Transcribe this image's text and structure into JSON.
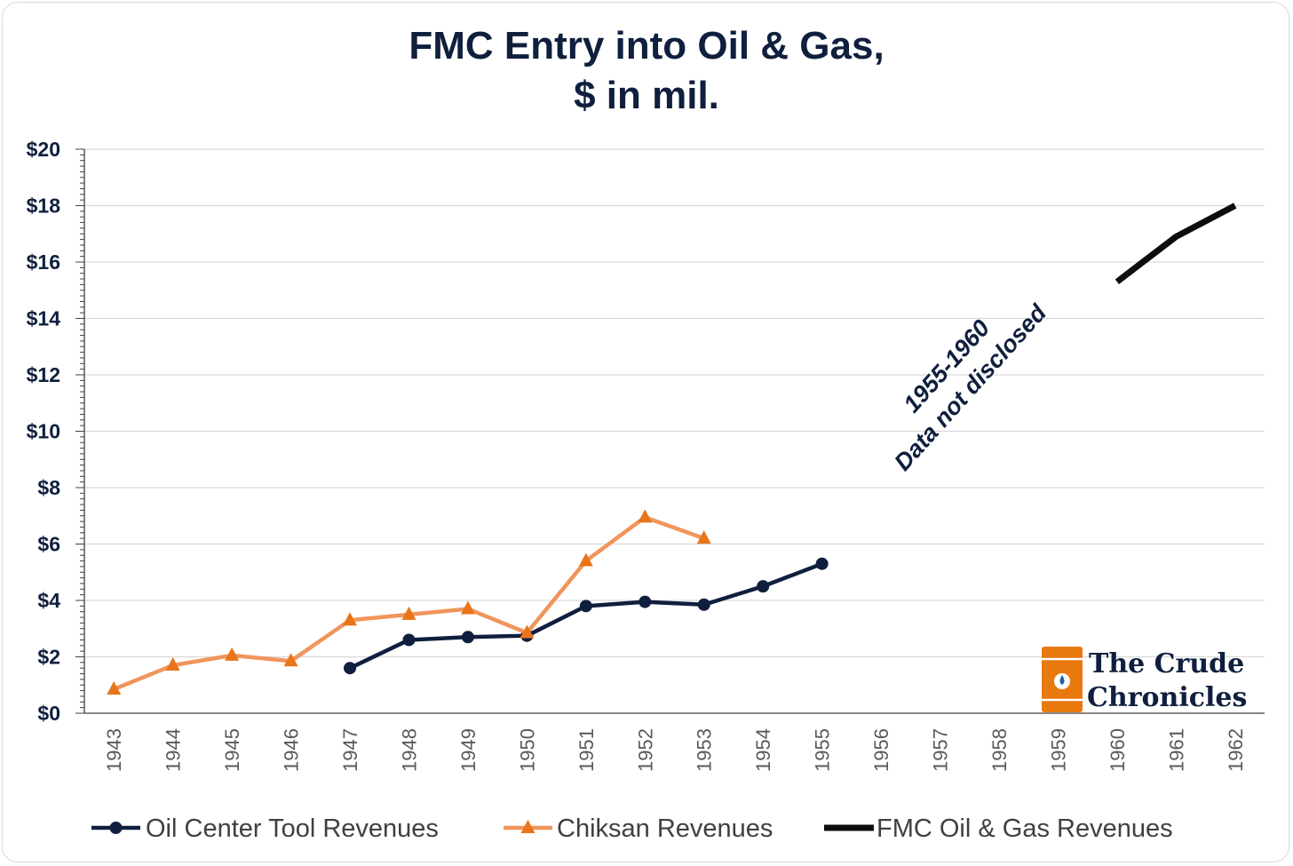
{
  "title_line1": "FMC Entry into Oil & Gas,",
  "title_line2": "$ in mil.",
  "annotation_line1": "1955-1960",
  "annotation_line2": "Data not disclosed",
  "logo": {
    "line1": "The Crude",
    "line2": "Chronicles",
    "icon": "oil-barrel-icon"
  },
  "colors": {
    "oil_center": "#0f1f3d",
    "chiksan": "#f0955b",
    "chiksan_marker": "#e8751a",
    "fmc": "#0d0d0d",
    "logo_barrel": "#e8790f"
  },
  "chart_data": {
    "type": "line",
    "x": [
      "1943",
      "1944",
      "1945",
      "1946",
      "1947",
      "1948",
      "1949",
      "1950",
      "1951",
      "1952",
      "1953",
      "1954",
      "1955",
      "1956",
      "1957",
      "1958",
      "1959",
      "1960",
      "1961",
      "1962"
    ],
    "yticks": [
      "$0",
      "$2",
      "$4",
      "$6",
      "$8",
      "$10",
      "$12",
      "$14",
      "$16",
      "$18",
      "$20"
    ],
    "ylim": [
      0,
      20
    ],
    "grid": true,
    "legend_position": "bottom",
    "series": [
      {
        "name": "Oil Center Tool Revenues",
        "marker": "circle",
        "values": [
          null,
          null,
          null,
          null,
          1.6,
          2.6,
          2.7,
          2.75,
          3.8,
          3.95,
          3.85,
          4.5,
          5.3,
          null,
          null,
          null,
          null,
          null,
          null,
          null
        ]
      },
      {
        "name": "Chiksan Revenues",
        "marker": "triangle",
        "values": [
          0.85,
          1.7,
          2.05,
          1.85,
          3.3,
          3.5,
          3.7,
          2.85,
          5.4,
          6.95,
          6.2,
          null,
          null,
          null,
          null,
          null,
          null,
          null,
          null,
          null
        ]
      },
      {
        "name": "FMC Oil & Gas Revenues",
        "marker": "none",
        "values": [
          null,
          null,
          null,
          null,
          null,
          null,
          null,
          null,
          null,
          null,
          null,
          null,
          null,
          null,
          null,
          null,
          null,
          15.3,
          16.9,
          18.0
        ]
      }
    ]
  }
}
